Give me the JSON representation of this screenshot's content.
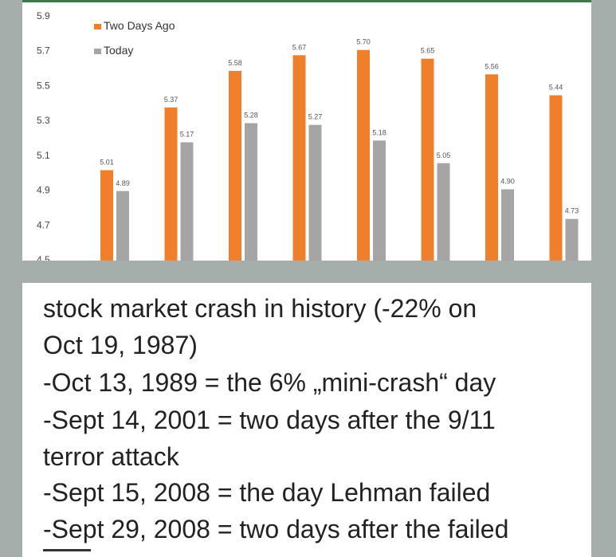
{
  "chart_data": {
    "type": "bar",
    "title": "",
    "xlabel": "",
    "ylabel": "",
    "ylim": [
      4.5,
      5.9
    ],
    "y_ticks": [
      "4.5",
      "4.7",
      "4.9",
      "5.1",
      "5.3",
      "5.5",
      "5.7",
      "5.9"
    ],
    "grid": false,
    "legend_position": "top-left",
    "categories": [
      "",
      "",
      "",
      "",
      "",
      "",
      "",
      ""
    ],
    "series": [
      {
        "name": "Two Days Ago",
        "color": "#f07f2c",
        "values": [
          5.01,
          5.37,
          5.58,
          5.67,
          5.7,
          5.65,
          5.56,
          5.44
        ],
        "labels": [
          "5.01",
          "5.37",
          "5.58",
          "5.67",
          "5.70",
          "5.65",
          "5.56",
          "5.44"
        ]
      },
      {
        "name": "Today",
        "color": "#a5a5a5",
        "values": [
          4.89,
          5.17,
          5.28,
          5.27,
          5.18,
          5.05,
          4.9,
          4.73
        ],
        "labels": [
          "4.89",
          "5.17",
          "5.28",
          "5.27",
          "5.18",
          "5.05",
          "4.90",
          "4.73"
        ]
      }
    ]
  },
  "caption": {
    "lines": [
      "stock market crash in history (-22% on",
      "Oct 19, 1987)",
      "-Oct 13, 1989 = the 6% „mini-crash“ day",
      "-Sept 14, 2001 = two days after the 9/11",
      "terror attack",
      "-Sept 15, 2008 = the day Lehman failed",
      "-Sept 29, 2008 = two days after the failed"
    ]
  }
}
